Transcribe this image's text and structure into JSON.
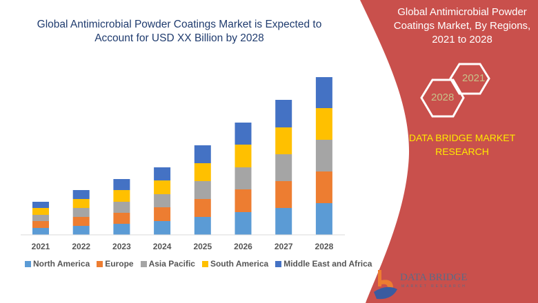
{
  "chart_data": {
    "type": "bar",
    "stacked": true,
    "title": "Global Antimicrobial Powder Coatings Market is Expected to Account for USD XX Billion by 2028",
    "categories": [
      "2021",
      "2022",
      "2023",
      "2024",
      "2025",
      "2026",
      "2027",
      "2028"
    ],
    "series": [
      {
        "name": "North America",
        "color": "#5b9bd5",
        "values": [
          10,
          13,
          16,
          20,
          26,
          33,
          39,
          46
        ]
      },
      {
        "name": "Europe",
        "color": "#ed7d31",
        "values": [
          10,
          13,
          16,
          20,
          26,
          33,
          39,
          46
        ]
      },
      {
        "name": "Asia Pacific",
        "color": "#a5a5a5",
        "values": [
          9,
          13,
          16,
          19,
          26,
          32,
          39,
          46
        ]
      },
      {
        "name": "South America",
        "color": "#ffc000",
        "values": [
          10,
          13,
          17,
          20,
          26,
          33,
          39,
          46
        ]
      },
      {
        "name": "Middle East and Africa",
        "color": "#4472c4",
        "values": [
          9,
          13,
          16,
          19,
          26,
          32,
          40,
          45
        ]
      }
    ],
    "legend": "bottom",
    "grid": false,
    "y_axis_shown": false
  },
  "side": {
    "title": "Global Antimicrobial Powder Coatings Market, By Regions, 2021 to 2028",
    "hex1": "2021",
    "hex2": "2028",
    "brand": "DATA BRIDGE MARKET RESEARCH",
    "panel_color": "#c9504c"
  },
  "logo": {
    "name": "DATA BRIDGE",
    "sub": "MARKET RESEARCH"
  }
}
